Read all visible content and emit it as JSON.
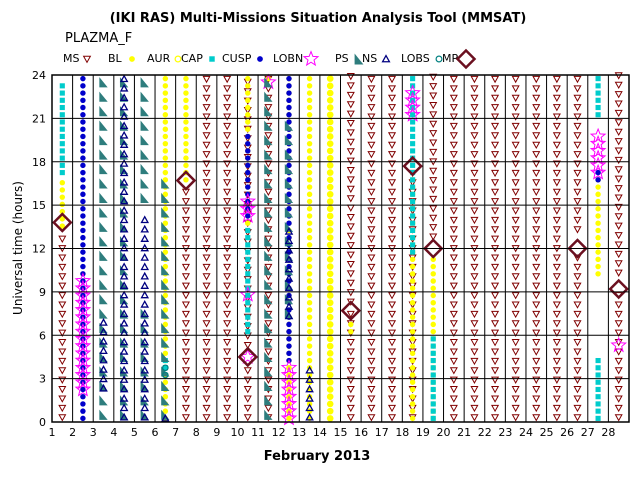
{
  "chart_data": {
    "type": "scatter",
    "title": "(IKI RAS) Multi-Missions Situation Analysis Tool (MMSAT)",
    "subtitle": "PLAZMA_F",
    "xlabel": "February 2013",
    "ylabel": "Universal time (hours)",
    "xlim": [
      1,
      29
    ],
    "ylim": [
      0,
      24
    ],
    "grid": true,
    "legend_position": "top",
    "x_ticks": [
      1,
      2,
      3,
      4,
      5,
      6,
      7,
      8,
      9,
      10,
      11,
      12,
      13,
      14,
      15,
      16,
      17,
      18,
      19,
      20,
      21,
      22,
      23,
      24,
      25,
      26,
      27,
      28
    ],
    "y_ticks": [
      0,
      3,
      6,
      9,
      12,
      15,
      18,
      21,
      24
    ],
    "series": [
      {
        "name": "MS",
        "marker": "triangle-down-open",
        "color": "#800000",
        "runs": [
          [
            1.5,
            0,
            13.3
          ],
          [
            7.5,
            0,
            16.5
          ],
          [
            8.5,
            0,
            24
          ],
          [
            9.5,
            0,
            24
          ],
          [
            10.5,
            0,
            4
          ],
          [
            10.5,
            5,
            24
          ],
          [
            11.5,
            0,
            24
          ],
          [
            15.5,
            0,
            7.5
          ],
          [
            15.5,
            8,
            24
          ],
          [
            16.5,
            0,
            24
          ],
          [
            17.5,
            0,
            24
          ],
          [
            18.5,
            0,
            17.5
          ],
          [
            19.5,
            12.5,
            24
          ],
          [
            20.5,
            0,
            24
          ],
          [
            21.5,
            0,
            24
          ],
          [
            22.5,
            0,
            24
          ],
          [
            23.5,
            0,
            24
          ],
          [
            24.5,
            0,
            24
          ],
          [
            25.5,
            0,
            24
          ],
          [
            26.5,
            0,
            12
          ],
          [
            26.5,
            13,
            24
          ],
          [
            28.5,
            0,
            9
          ],
          [
            28.5,
            10,
            24
          ]
        ]
      },
      {
        "name": "BL",
        "marker": "circle",
        "color": "#ffff00",
        "runs": [
          [
            1.5,
            13.3,
            17
          ],
          [
            6.5,
            0,
            24
          ],
          [
            7.5,
            16.5,
            24
          ],
          [
            10.5,
            13.5,
            24
          ],
          [
            11.5,
            23.5,
            24
          ],
          [
            12.5,
            0,
            24
          ],
          [
            13.5,
            0,
            24
          ],
          [
            14.5,
            0,
            24
          ],
          [
            15.5,
            6,
            7
          ],
          [
            18.5,
            0,
            17.5
          ],
          [
            19.5,
            0,
            11.5
          ],
          [
            27.5,
            10,
            17
          ]
        ]
      },
      {
        "name": "AUR",
        "marker": "circle-open",
        "color": "#ffff00",
        "runs": [
          [
            14.5,
            0,
            24
          ]
        ]
      },
      {
        "name": "CAP",
        "marker": "square",
        "color": "#00cccc",
        "runs": [
          [
            1.5,
            17,
            23.5
          ],
          [
            6.5,
            3.5,
            4.5
          ],
          [
            10.5,
            6,
            13.5
          ],
          [
            18.5,
            11.5,
            24
          ],
          [
            19.5,
            0,
            6
          ],
          [
            27.5,
            0,
            4.5
          ],
          [
            27.5,
            21,
            24
          ]
        ]
      },
      {
        "name": "CUSP",
        "marker": "circle",
        "color": "#0000cc",
        "runs": [
          [
            2.5,
            0,
            24
          ],
          [
            10.5,
            14,
            20
          ],
          [
            12.5,
            4,
            13
          ],
          [
            12.5,
            13.5,
            24
          ],
          [
            27.5,
            16.5,
            17.5
          ]
        ]
      },
      {
        "name": "LOBN",
        "marker": "star-open",
        "color": "#ff00ff",
        "runs": [
          [
            2.5,
            2,
            10
          ],
          [
            10.5,
            4.5,
            4.5
          ],
          [
            10.5,
            8.8,
            8.8
          ],
          [
            10.5,
            14,
            15.5
          ],
          [
            11.5,
            23.5,
            23.5
          ],
          [
            12.5,
            0,
            4
          ],
          [
            18.5,
            21,
            23
          ],
          [
            27.5,
            17,
            20
          ],
          [
            28.5,
            5.3,
            5.3
          ]
        ]
      },
      {
        "name": "PS",
        "marker": "flag",
        "color": "#2e7d7d",
        "runs": [
          [
            3.5,
            0,
            24
          ],
          [
            4.5,
            0,
            24
          ],
          [
            5.5,
            0,
            8
          ],
          [
            5.5,
            15,
            24
          ],
          [
            6.5,
            0,
            16.5
          ],
          [
            11.5,
            0,
            24
          ],
          [
            12.5,
            7,
            21
          ]
        ]
      },
      {
        "name": "NS",
        "marker": "triangle-up-open",
        "color": "#000080",
        "runs": [
          [
            3.5,
            2,
            7
          ],
          [
            4.5,
            0,
            24
          ],
          [
            5.5,
            0,
            14
          ],
          [
            6.5,
            0,
            0.5
          ],
          [
            12.5,
            7,
            13.5
          ],
          [
            13.5,
            0,
            4
          ]
        ]
      },
      {
        "name": "LOBS",
        "marker": "circle-open",
        "color": "#008080",
        "runs": [
          [
            6.5,
            3,
            4
          ]
        ]
      },
      {
        "name": "MP",
        "marker": "diamond-open",
        "color": "#6b1020",
        "points": [
          [
            1.5,
            13.8
          ],
          [
            7.5,
            16.7
          ],
          [
            10.5,
            4.5
          ],
          [
            15.5,
            7.7
          ],
          [
            18.5,
            17.7
          ],
          [
            19.5,
            12
          ],
          [
            26.5,
            12
          ],
          [
            28.5,
            9.2
          ]
        ]
      }
    ]
  }
}
